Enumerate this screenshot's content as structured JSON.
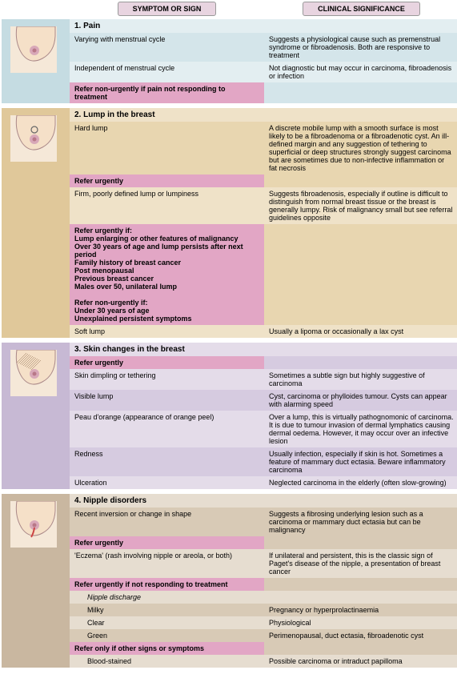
{
  "headers": {
    "symptom": "SYMPTOM OR SIGN",
    "clinical": "CLINICAL SIGNIFICANCE"
  },
  "sections": [
    {
      "id": "pain",
      "title": "1. Pain",
      "rows": [
        {
          "type": "row",
          "cls": "a",
          "symptom": "Varying with menstrual cycle",
          "sig": "Suggests a physiological cause such as premenstrual syndrome or fibroadenosis. Both are responsive to treatment"
        },
        {
          "type": "row",
          "cls": "b",
          "symptom": "Independent of menstrual cycle",
          "sig": "Not diagnostic but may occur in carcinoma, fibroadenosis or infection"
        },
        {
          "type": "refer",
          "text": "Refer non-urgently if pain not responding to treatment"
        }
      ]
    },
    {
      "id": "lump",
      "title": "2. Lump in the breast",
      "rows": [
        {
          "type": "row",
          "cls": "a",
          "symptom": "Hard lump",
          "sig": "A discrete mobile lump with a smooth surface is most likely to be a fibroadenoma or a fibroadenotic cyst. An ill-defined margin and any suggestion of tethering to superficial or deep structures strongly suggest carcinoma but are sometimes due to non-infective inflammation or fat necrosis"
        },
        {
          "type": "refer",
          "text": "Refer urgently"
        },
        {
          "type": "row",
          "cls": "b",
          "symptom": "Firm, poorly defined lump or lumpiness",
          "sig": "Suggests fibroadenosis, especially if outline is difficult to distinguish from normal breast tissue or the breast is generally lumpy. Risk of malignancy small but see referral guidelines opposite"
        },
        {
          "type": "refer-multi",
          "text": "Refer urgently if:\nLump enlarging or other features of malignancy\nOver 30 years of age and lump persists after next period\nFamily history of breast cancer\nPost menopausal\nPrevious breast cancer\nMales over 50, unilateral lump\n\nRefer non-urgently if:\nUnder 30 years of age\nUnexplained persistent symptoms"
        },
        {
          "type": "row",
          "cls": "b",
          "symptom": "Soft lump",
          "sig": "Usually a lipoma or occasionally a lax cyst"
        }
      ]
    },
    {
      "id": "skin",
      "title": "3. Skin changes in the breast",
      "rows": [
        {
          "type": "refer",
          "text": "Refer urgently"
        },
        {
          "type": "row",
          "cls": "b",
          "symptom": "Skin dimpling or tethering",
          "sig": "Sometimes a subtle sign but highly suggestive of carcinoma"
        },
        {
          "type": "row",
          "cls": "a",
          "symptom": "Visible lump",
          "sig": "Cyst, carcinoma or phylloides tumour. Cysts can appear with alarming speed"
        },
        {
          "type": "row",
          "cls": "b",
          "symptom": "Peau d'orange (appearance of orange peel)",
          "sig": "Over a lump, this is virtually pathognomonic of carcinoma. It is due to tumour invasion of dermal lymphatics causing dermal oedema. However, it may occur over an infective lesion"
        },
        {
          "type": "row",
          "cls": "a",
          "symptom": "Redness",
          "sig": "Usually infection, especially if skin is hot. Sometimes a feature of mammary duct ectasia. Beware inflammatory carcinoma"
        },
        {
          "type": "row",
          "cls": "b",
          "symptom": "Ulceration",
          "sig": "Neglected carcinoma in the elderly (often slow-growing)"
        }
      ]
    },
    {
      "id": "nipple",
      "title": "4. Nipple disorders",
      "rows": [
        {
          "type": "row",
          "cls": "a",
          "symptom": "Recent inversion or change in shape",
          "sig": "Suggests a fibrosing underlying lesion such as a carcinoma or mammary duct ectasia but can be malignancy"
        },
        {
          "type": "refer",
          "text": "Refer urgently"
        },
        {
          "type": "row",
          "cls": "b",
          "symptom": "'Eczema' (rash involving nipple or areola, or both)",
          "sig": "If unilateral and persistent, this is the classic sign of Paget's disease of the nipple, a presentation of breast cancer"
        },
        {
          "type": "refer",
          "text": "Refer urgently if not responding to treatment"
        },
        {
          "type": "sub-title",
          "text": "Nipple discharge"
        },
        {
          "type": "row",
          "cls": "a",
          "indent": true,
          "symptom": "Milky",
          "sig": "Pregnancy or hyperprolactinaemia"
        },
        {
          "type": "row",
          "cls": "b",
          "indent": true,
          "symptom": "Clear",
          "sig": "Physiological"
        },
        {
          "type": "row",
          "cls": "a",
          "indent": true,
          "symptom": "Green",
          "sig": "Perimenopausal, duct ectasia, fibroadenotic cyst"
        },
        {
          "type": "refer",
          "text": "Refer only if other signs or symptoms"
        },
        {
          "type": "row",
          "cls": "b",
          "indent": true,
          "symptom": "Blood-stained",
          "sig": "Possible carcinoma or intraduct papilloma"
        }
      ]
    }
  ]
}
